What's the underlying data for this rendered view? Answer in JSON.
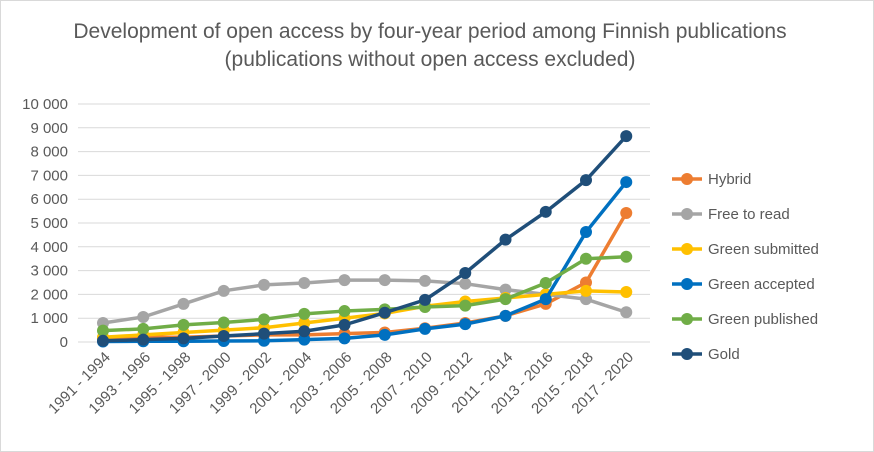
{
  "chart_data": {
    "type": "line",
    "title": "Development of open access by four-year period among Finnish publications (publications without open access excluded)",
    "xlabel": "",
    "ylabel": "",
    "ylim": [
      0,
      10000
    ],
    "yticks": [
      "0",
      "1 000",
      "2 000",
      "3 000",
      "4 000",
      "5 000",
      "6 000",
      "7 000",
      "8 000",
      "9 000",
      "10 000"
    ],
    "grid": true,
    "legend_position": "right",
    "categories": [
      "1991 - 1994",
      "1993 - 1996",
      "1995 - 1998",
      "1997 - 2000",
      "1999 - 2002",
      "2001 - 2004",
      "2003 - 2006",
      "2005 - 2008",
      "2007 - 2010",
      "2009 - 2012",
      "2011 - 2014",
      "2013 - 2016",
      "2015 - 2018",
      "2017 - 2020"
    ],
    "series": [
      {
        "name": "Hybrid",
        "color": "#ed7d31",
        "values": [
          150,
          200,
          200,
          250,
          300,
          300,
          350,
          400,
          580,
          800,
          1100,
          1600,
          2500,
          5420
        ]
      },
      {
        "name": "Free to read",
        "color": "#a5a5a5",
        "values": [
          800,
          1050,
          1600,
          2150,
          2400,
          2480,
          2600,
          2600,
          2570,
          2450,
          2200,
          2000,
          1800,
          1250
        ]
      },
      {
        "name": "Green submitted",
        "color": "#ffc000",
        "values": [
          200,
          300,
          400,
          500,
          600,
          800,
          1000,
          1200,
          1500,
          1700,
          1850,
          2000,
          2150,
          2100
        ]
      },
      {
        "name": "Green accepted",
        "color": "#0070c0",
        "values": [
          20,
          30,
          30,
          40,
          50,
          100,
          150,
          300,
          550,
          750,
          1100,
          1800,
          4620,
          6720
        ]
      },
      {
        "name": "Green published",
        "color": "#70ad47",
        "values": [
          480,
          550,
          720,
          820,
          950,
          1180,
          1300,
          1370,
          1470,
          1530,
          1800,
          2480,
          3500,
          3580
        ]
      },
      {
        "name": "Gold",
        "color": "#1f4e79",
        "values": [
          50,
          100,
          150,
          250,
          350,
          450,
          720,
          1230,
          1770,
          2900,
          4300,
          5470,
          6800,
          8650
        ]
      }
    ]
  }
}
